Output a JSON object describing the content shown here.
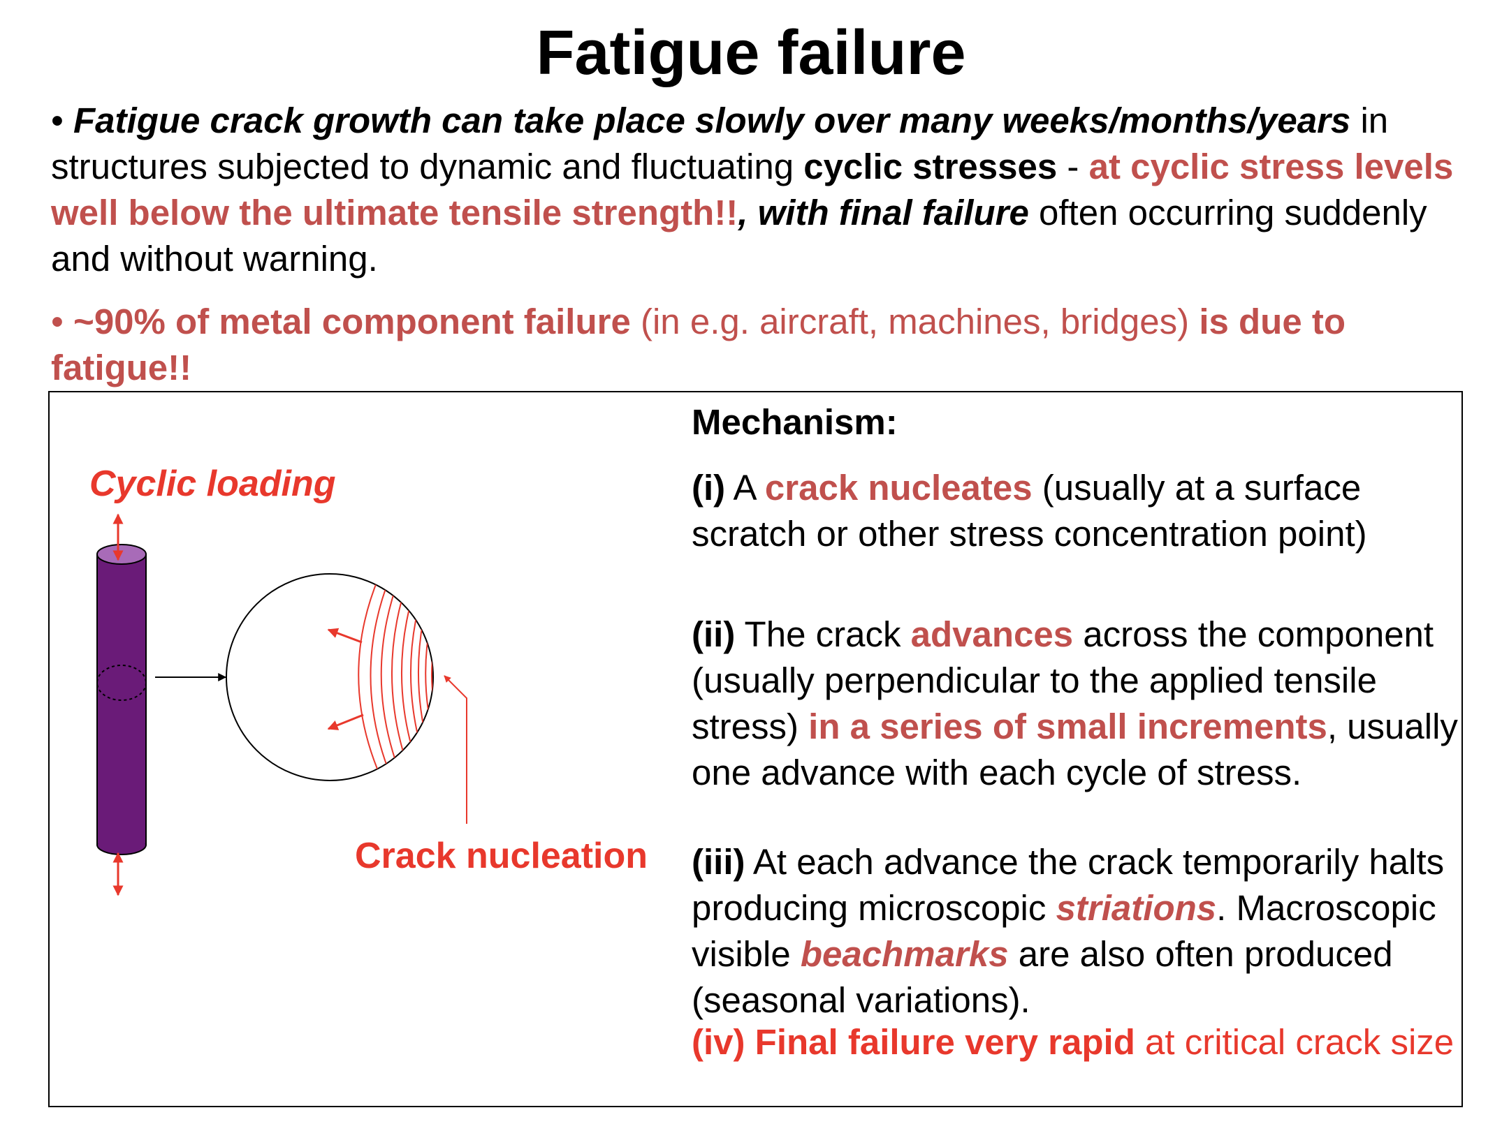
{
  "title": "Fatigue failure",
  "para1": {
    "bullet": "•",
    "lead": "Fatigue crack growth can take place slowly over many weeks/months/years",
    "t1": " in structures subjected to dynamic and fluctuating ",
    "cyclic": "cyclic stresses",
    "t2": " - ",
    "hl": "at cyclic stress levels well below the ultimate tensile strength!!",
    "bi2": ", with final failure",
    "t3": " often occurring suddenly and without warning."
  },
  "para2": {
    "bullet": "•",
    "b1": "~90% of metal component failure",
    "t1": " (in e.g. aircraft, machines, bridges) ",
    "b2": "is due to fatigue!!"
  },
  "diagram": {
    "cyclic_loading_label": "Cyclic loading",
    "crack_nucleation_label": "Crack nucleation"
  },
  "mechanism": {
    "heading": "Mechanism:",
    "i": {
      "num": "(i)",
      "t1": " A ",
      "hl": "crack nucleates",
      "t2": " (usually at a surface scratch or other stress concentration point)"
    },
    "ii": {
      "num": "(ii)",
      "t1": " The crack ",
      "hl1": "advances",
      "t2": " across the component (usually perpendicular to the applied tensile stress) ",
      "hl2": "in a series of small increments",
      "t3": ", usually one advance with each cycle of stress."
    },
    "iii": {
      "num": "(iii)",
      "t1": " At each advance the crack temporarily halts producing microscopic ",
      "hl1": "striations",
      "t2": ". Macroscopic visible ",
      "hl2": "beachmarks",
      "t3": " are also often produced (seasonal variations)."
    },
    "iv": {
      "b": "(iv) Final failure very rapid",
      "t": " at critical crack size"
    }
  },
  "colors": {
    "highlight": "#c0504d",
    "red": "#e8382c",
    "rod": "#6a1b78",
    "rod_top": "#a86bb8"
  }
}
